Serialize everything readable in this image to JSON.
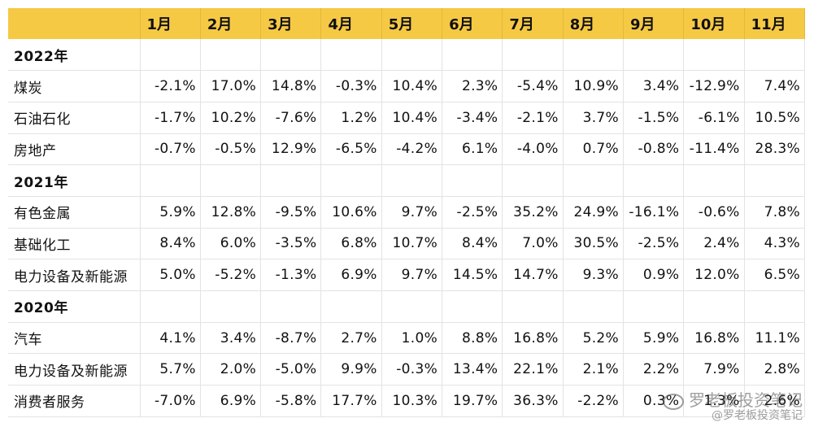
{
  "headers": [
    "",
    "1月",
    "2月",
    "3月",
    "4月",
    "5月",
    "6月",
    "7月",
    "8月",
    "9月",
    "10月",
    "11月"
  ],
  "groups": [
    {
      "year": "2022年",
      "rows": [
        {
          "name": "煤炭",
          "values": [
            "-2.1%",
            "17.0%",
            "14.8%",
            "-0.3%",
            "10.4%",
            "2.3%",
            "-5.4%",
            "10.9%",
            "3.4%",
            "-12.9%",
            "7.4%"
          ]
        },
        {
          "name": "石油石化",
          "values": [
            "-1.7%",
            "10.2%",
            "-7.6%",
            "1.2%",
            "10.4%",
            "-3.4%",
            "-2.1%",
            "3.7%",
            "-1.5%",
            "-6.1%",
            "10.5%"
          ]
        },
        {
          "name": "房地产",
          "values": [
            "-0.7%",
            "-0.5%",
            "12.9%",
            "-6.5%",
            "-4.2%",
            "6.1%",
            "-4.0%",
            "0.7%",
            "-0.8%",
            "-11.4%",
            "28.3%"
          ]
        }
      ]
    },
    {
      "year": "2021年",
      "rows": [
        {
          "name": "有色金属",
          "values": [
            "5.9%",
            "12.8%",
            "-9.5%",
            "10.6%",
            "9.7%",
            "-2.5%",
            "35.2%",
            "24.9%",
            "-16.1%",
            "-0.6%",
            "7.8%"
          ]
        },
        {
          "name": "基础化工",
          "values": [
            "8.4%",
            "6.0%",
            "-3.5%",
            "6.8%",
            "10.7%",
            "8.4%",
            "7.0%",
            "30.5%",
            "-2.5%",
            "2.4%",
            "4.3%"
          ]
        },
        {
          "name": "电力设备及新能源",
          "values": [
            "5.0%",
            "-5.2%",
            "-1.3%",
            "6.9%",
            "9.7%",
            "14.5%",
            "14.7%",
            "9.3%",
            "0.9%",
            "12.0%",
            "6.5%"
          ]
        }
      ]
    },
    {
      "year": "2020年",
      "rows": [
        {
          "name": "汽车",
          "values": [
            "4.1%",
            "3.4%",
            "-8.7%",
            "2.7%",
            "1.0%",
            "8.8%",
            "16.8%",
            "5.2%",
            "5.9%",
            "16.8%",
            "11.1%"
          ]
        },
        {
          "name": "电力设备及新能源",
          "values": [
            "5.7%",
            "2.0%",
            "-5.0%",
            "9.9%",
            "-0.3%",
            "13.4%",
            "22.1%",
            "2.1%",
            "2.2%",
            "7.9%",
            "2.8%"
          ]
        },
        {
          "name": "消费者服务",
          "values": [
            "-7.0%",
            "6.9%",
            "-5.8%",
            "17.7%",
            "10.3%",
            "19.7%",
            "36.3%",
            "-2.2%",
            "0.3%",
            "1.3%",
            "2.6%"
          ]
        }
      ]
    }
  ],
  "watermark": {
    "line1": "罗老板投资笔记",
    "line2": "@罗老板投资笔记"
  }
}
